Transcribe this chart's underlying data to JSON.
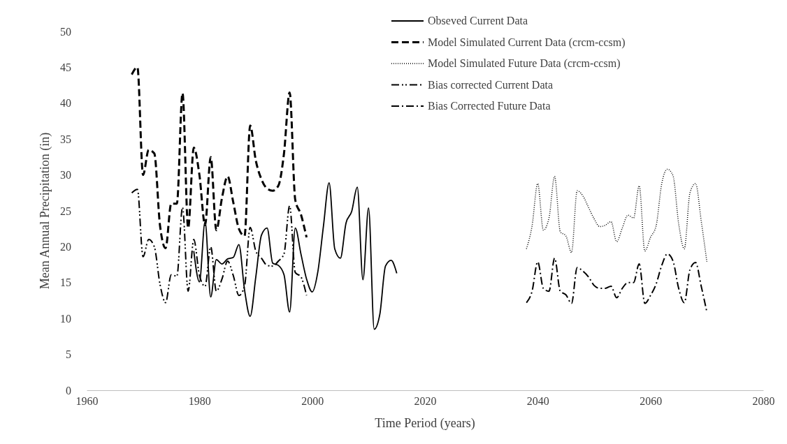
{
  "chart_data": {
    "type": "line",
    "xlabel": "Time Period (years)",
    "ylabel": "Mean Annual Precipitation (in)",
    "xlim": [
      1960,
      2080
    ],
    "xticks": [
      1960,
      1980,
      2000,
      2020,
      2040,
      2060,
      2080
    ],
    "ylim": [
      0,
      50
    ],
    "yticks": [
      0,
      5,
      10,
      15,
      20,
      25,
      30,
      35,
      40,
      45,
      50
    ],
    "grid": false,
    "legend": "top right",
    "marker": "none",
    "series": [
      {
        "name": "Obseved Current Data",
        "color": "#000000",
        "line_style": "solid",
        "x": [
          1979,
          1980,
          1981,
          1982,
          1983,
          1984,
          1985,
          1986,
          1987,
          1988,
          1989,
          1990,
          1991,
          1992,
          1993,
          1994,
          1995,
          1996,
          1997,
          1998,
          1999,
          2000,
          2001,
          2002,
          2003,
          2004,
          2005,
          2006,
          2007,
          2008,
          2009,
          2010,
          2011,
          2012,
          2013,
          2014,
          2015
        ],
        "values": [
          19.4,
          15.1,
          23.5,
          13,
          18.2,
          17.6,
          18.3,
          18.5,
          20.3,
          14,
          10.3,
          15.8,
          21.6,
          22.6,
          17.7,
          17.4,
          16.1,
          10.9,
          22.6,
          19,
          15.5,
          13.7,
          16.5,
          22.9,
          28.9,
          19.7,
          18.4,
          23.3,
          24.9,
          28.3,
          15.4,
          25.4,
          8.5,
          10.6,
          17.3,
          18.1,
          16.3
        ]
      },
      {
        "name": "Model Simulated Current Data (crcm-ccsm)",
        "color": "#000000",
        "line_style": "dashed",
        "x": [
          1968,
          1969,
          1970,
          1971,
          1972,
          1973,
          1974,
          1975,
          1976,
          1977,
          1978,
          1979,
          1980,
          1981,
          1982,
          1983,
          1984,
          1985,
          1986,
          1987,
          1988,
          1989,
          1990,
          1991,
          1992,
          1993,
          1994,
          1995,
          1996,
          1997,
          1998,
          1999
        ],
        "values": [
          44,
          45,
          30,
          33.5,
          33,
          23,
          19.8,
          26,
          26,
          41.4,
          22.6,
          33.8,
          30,
          23,
          32.5,
          22.3,
          26.8,
          29.8,
          26.2,
          22.5,
          21.5,
          36.9,
          32,
          29.4,
          28.1,
          27.8,
          28.5,
          33,
          41.5,
          26.5,
          24.5,
          21.3
        ]
      },
      {
        "name": "Model Simulated Future Data (crcm-ccsm)",
        "color": "#000000",
        "line_style": "dotted",
        "x": [
          2038,
          2039,
          2040,
          2041,
          2042,
          2043,
          2044,
          2045,
          2046,
          2047,
          2048,
          2049,
          2050,
          2051,
          2052,
          2053,
          2054,
          2055,
          2056,
          2057,
          2058,
          2059,
          2060,
          2061,
          2062,
          2063,
          2064,
          2065,
          2066,
          2067,
          2068,
          2069,
          2070
        ],
        "values": [
          19.7,
          22.9,
          28.8,
          22.3,
          24,
          29.8,
          22.1,
          21.5,
          19.2,
          27.8,
          27.1,
          25.5,
          23.9,
          22.8,
          23,
          23.5,
          20.7,
          22.6,
          24.4,
          24,
          28.5,
          19.4,
          21.3,
          22.9,
          28.8,
          30.8,
          29.9,
          23.2,
          19.7,
          27.5,
          28.8,
          23.6,
          17.9
        ]
      },
      {
        "name": "Bias corrected Current Data",
        "color": "#000000",
        "line_style": "dashdotdot",
        "x": [
          1968,
          1969,
          1970,
          1971,
          1972,
          1973,
          1974,
          1975,
          1976,
          1977,
          1978,
          1979,
          1980,
          1981,
          1982,
          1983,
          1984,
          1985,
          1986,
          1987,
          1988,
          1989,
          1990,
          1991,
          1992,
          1993,
          1994,
          1995,
          1996,
          1997,
          1998,
          1999
        ],
        "values": [
          27.5,
          28,
          18.6,
          21,
          20,
          14.8,
          12.2,
          16.1,
          15.9,
          25.5,
          13.8,
          21,
          16,
          14.5,
          20,
          13.8,
          15.5,
          18,
          16,
          13.2,
          14.5,
          22.7,
          19.4,
          18.4,
          17.4,
          17.3,
          18,
          19,
          25.7,
          16.4,
          15.8,
          13.2
        ]
      },
      {
        "name": "Bias Corrected Future Data",
        "color": "#000000",
        "line_style": "dashdot",
        "x": [
          2038,
          2039,
          2040,
          2041,
          2042,
          2043,
          2044,
          2045,
          2046,
          2047,
          2048,
          2049,
          2050,
          2051,
          2052,
          2053,
          2054,
          2055,
          2056,
          2057,
          2058,
          2059,
          2060,
          2061,
          2062,
          2063,
          2064,
          2065,
          2066,
          2067,
          2068,
          2069,
          2070
        ],
        "values": [
          12.2,
          13.8,
          17.9,
          14.2,
          13.8,
          18.4,
          13.8,
          13.3,
          12.1,
          17.1,
          16.6,
          15.8,
          14.6,
          14.2,
          14.2,
          14.5,
          12.9,
          14.2,
          15,
          15,
          17.6,
          12.1,
          13.2,
          14.8,
          17.4,
          19,
          18,
          14.2,
          12.2,
          16.8,
          17.8,
          14.5,
          10.9
        ]
      }
    ]
  }
}
